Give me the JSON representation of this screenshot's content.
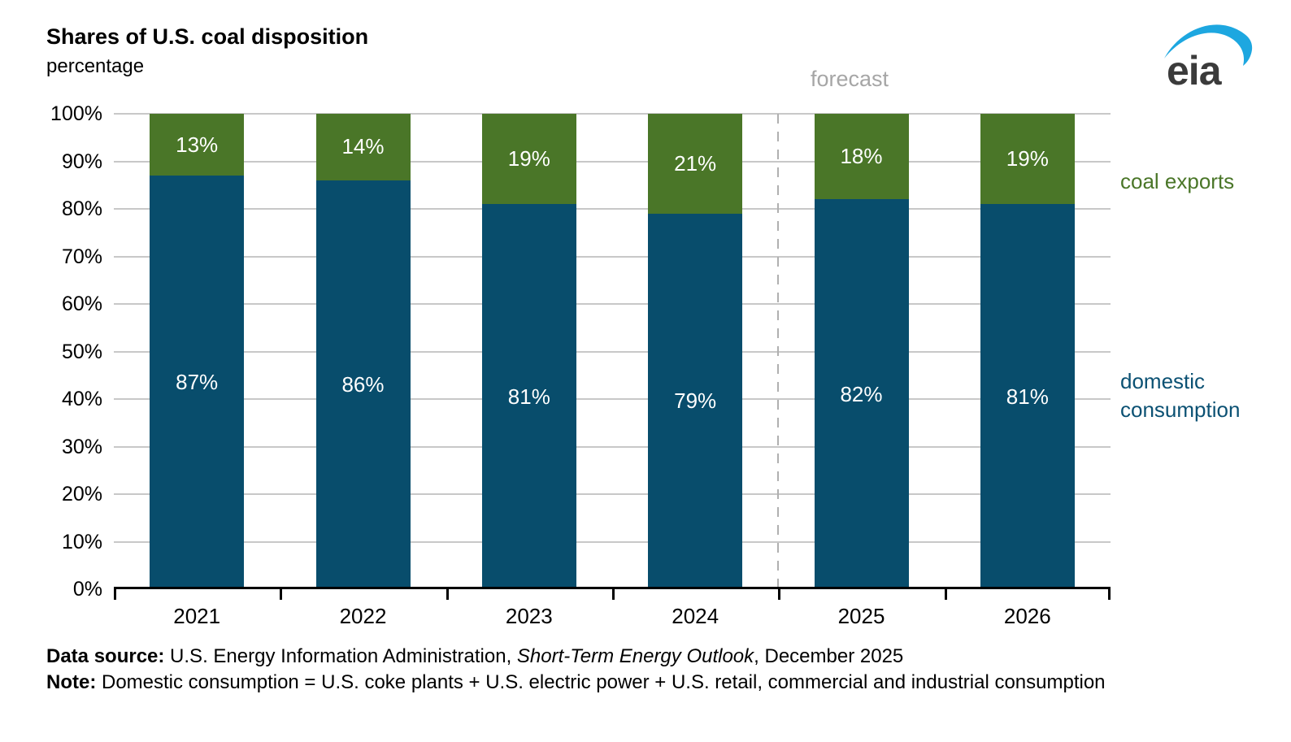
{
  "header": {
    "title": "Shares of U.S. coal disposition",
    "subtitle": "percentage",
    "logo": {
      "text": "eia",
      "brand_blue": "#1da7e0",
      "text_color": "#3b3b3b"
    }
  },
  "chart_data": {
    "type": "bar",
    "stacked": true,
    "title": "Shares of U.S. coal disposition",
    "unit_label": "percentage",
    "categories": [
      "2021",
      "2022",
      "2023",
      "2024",
      "2025",
      "2026"
    ],
    "series": [
      {
        "name": "domestic consumption",
        "color": "#084d6c",
        "values": [
          87,
          86,
          81,
          79,
          82,
          81
        ]
      },
      {
        "name": "coal exports",
        "color": "#4a7628",
        "values": [
          13,
          14,
          19,
          21,
          18,
          19
        ]
      }
    ],
    "value_suffix": "%",
    "value_label_color": "#ffffff",
    "ylim": [
      0,
      100
    ],
    "ytick_labels": [
      "0%",
      "10%",
      "20%",
      "30%",
      "40%",
      "50%",
      "60%",
      "70%",
      "80%",
      "90%",
      "100%"
    ],
    "grid": true,
    "gridline_color": "#c8c8c8",
    "legend_position": "right",
    "forecast_divider": {
      "label": "forecast",
      "starts_at_category": "2025",
      "line_color": "#b0b0b0",
      "label_color": "#a6a6a6"
    }
  },
  "annotations": {
    "forecast": "forecast",
    "coal_exports": "coal exports",
    "domestic_line1": "domestic",
    "domestic_line2": "consumption"
  },
  "footer": {
    "source_label": "Data source:",
    "source_text": " U.S. Energy Information Administration, ",
    "source_italic": "Short-Term Energy Outlook",
    "source_suffix": ", December 2025",
    "note_label": "Note:",
    "note_text": " Domestic consumption = U.S. coke plants + U.S. electric power + U.S. retail, commercial and industrial consumption"
  }
}
